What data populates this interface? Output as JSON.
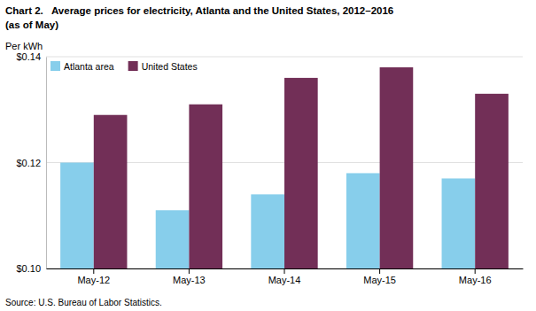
{
  "chart_data": {
    "type": "bar",
    "title": "Chart 2.   Average prices for electricity, Atlanta and the United States, 2012–2016",
    "subtitle": "(as of May)",
    "ylabel": "Per kWh",
    "source": "Source: U.S. Bureau of Labor Statistics.",
    "categories": [
      "May-12",
      "May-13",
      "May-14",
      "May-15",
      "May-16"
    ],
    "series": [
      {
        "name": "Atlanta area",
        "color": "#87CEEB",
        "values": [
          0.12,
          0.111,
          0.114,
          0.118,
          0.117
        ]
      },
      {
        "name": "United States",
        "color": "#722F57",
        "values": [
          0.129,
          0.131,
          0.136,
          0.138,
          0.133
        ]
      }
    ],
    "ylim": [
      0.1,
      0.14
    ],
    "yticks": [
      {
        "value": 0.1,
        "label": "$0.10"
      },
      {
        "value": 0.12,
        "label": "$0.12"
      },
      {
        "value": 0.14,
        "label": "$0.14"
      }
    ],
    "grid": true,
    "legend": "upper left"
  }
}
